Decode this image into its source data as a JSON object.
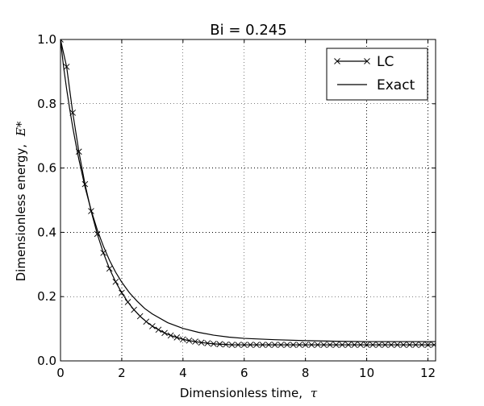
{
  "chart_data": {
    "type": "line",
    "title": "Bi = 0.245",
    "xlabel": "Dimensionless time,",
    "xlabel_symbol": "τ",
    "ylabel": "Dimensionless energy,",
    "ylabel_symbol": "E*",
    "xlim": [
      0,
      12.25
    ],
    "ylim": [
      0.0,
      1.0
    ],
    "xticks": [
      0,
      2,
      4,
      6,
      8,
      10,
      12
    ],
    "xtick_labels": [
      "0",
      "2",
      "4",
      "6",
      "8",
      "10",
      "12"
    ],
    "yticks": [
      0.0,
      0.2,
      0.4,
      0.6,
      0.8,
      1.0
    ],
    "ytick_labels": [
      "0.0",
      "0.2",
      "0.4",
      "0.6",
      "0.8",
      "1.0"
    ],
    "grid": true,
    "legend_position": "top-right",
    "series": [
      {
        "name": "LC",
        "style": "line-with-x-markers",
        "color": "#000000",
        "x": [
          0.0,
          0.2,
          0.4,
          0.6,
          0.8,
          1.0,
          1.2,
          1.4,
          1.6,
          1.8,
          2.0,
          2.2,
          2.4,
          2.6,
          2.8,
          3.0,
          3.2,
          3.4,
          3.6,
          3.8,
          4.0,
          4.2,
          4.4,
          4.6,
          4.8,
          5.0,
          5.2,
          5.4,
          5.6,
          5.8,
          6.0,
          6.2,
          6.4,
          6.6,
          6.8,
          7.0,
          7.2,
          7.4,
          7.6,
          7.8,
          8.0,
          8.2,
          8.4,
          8.6,
          8.8,
          9.0,
          9.2,
          9.4,
          9.6,
          9.8,
          10.0,
          10.2,
          10.4,
          10.6,
          10.8,
          11.0,
          11.2,
          11.4,
          11.6,
          11.8,
          12.0,
          12.2
        ],
        "y": [
          1.0,
          0.915,
          0.772,
          0.651,
          0.55,
          0.466,
          0.395,
          0.336,
          0.287,
          0.246,
          0.212,
          0.183,
          0.159,
          0.139,
          0.122,
          0.108,
          0.097,
          0.087,
          0.079,
          0.073,
          0.067,
          0.063,
          0.06,
          0.057,
          0.055,
          0.053,
          0.052,
          0.051,
          0.05,
          0.05,
          0.05,
          0.05,
          0.05,
          0.05,
          0.05,
          0.05,
          0.05,
          0.05,
          0.05,
          0.05,
          0.05,
          0.05,
          0.05,
          0.05,
          0.05,
          0.05,
          0.05,
          0.05,
          0.05,
          0.05,
          0.05,
          0.05,
          0.05,
          0.05,
          0.05,
          0.05,
          0.05,
          0.05,
          0.05,
          0.05,
          0.05,
          0.05
        ]
      },
      {
        "name": "Exact",
        "style": "line",
        "color": "#000000",
        "x": [
          0.0,
          0.1,
          0.2,
          0.3,
          0.4,
          0.5,
          0.6,
          0.8,
          1.0,
          1.2,
          1.4,
          1.6,
          1.8,
          2.0,
          2.25,
          2.5,
          2.75,
          3.0,
          3.5,
          4.0,
          4.5,
          5.0,
          5.5,
          6.0,
          7.0,
          8.0,
          9.0,
          10.0,
          11.0,
          12.25
        ],
        "y": [
          1.0,
          0.915,
          0.846,
          0.784,
          0.727,
          0.675,
          0.627,
          0.541,
          0.469,
          0.408,
          0.357,
          0.313,
          0.276,
          0.245,
          0.212,
          0.186,
          0.163,
          0.146,
          0.119,
          0.101,
          0.089,
          0.08,
          0.074,
          0.07,
          0.066,
          0.063,
          0.061,
          0.06,
          0.06,
          0.06
        ]
      }
    ]
  }
}
